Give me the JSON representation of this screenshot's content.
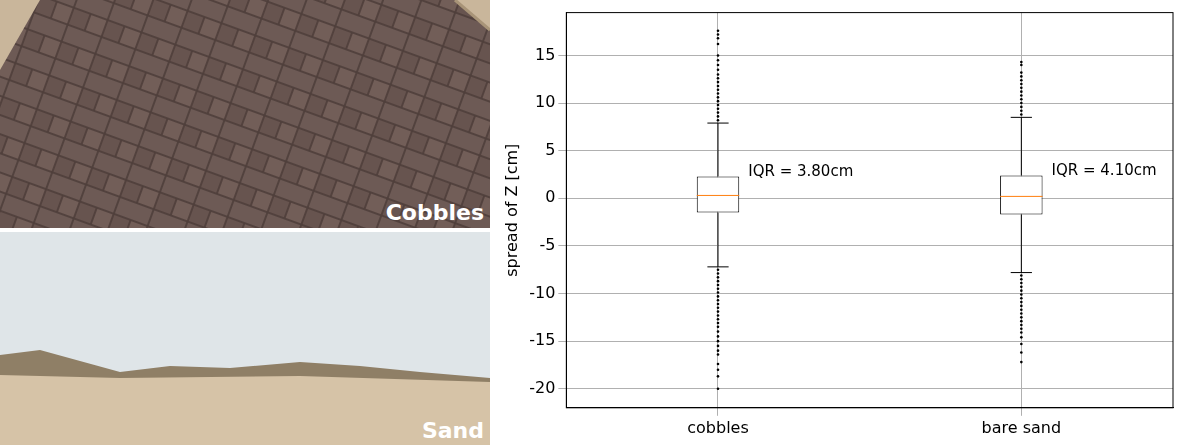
{
  "photos": [
    {
      "label": "Cobbles"
    },
    {
      "label": "Sand"
    }
  ],
  "chart_data": {
    "type": "box",
    "y_label": "spread of Z [cm]",
    "categories": [
      "cobbles",
      "bare sand"
    ],
    "boxes": [
      {
        "whislo": -7.2,
        "q1": -1.5,
        "median": 0.3,
        "q3": 2.3,
        "whishi": 7.9,
        "label": "IQR = 3.80cm",
        "outliers": [
          8.2,
          8.6,
          9.0,
          9.4,
          9.8,
          10.2,
          10.6,
          11.0,
          11.4,
          11.8,
          12.2,
          12.6,
          13.0,
          13.5,
          14.0,
          14.5,
          15.0,
          16.2,
          16.8,
          17.2,
          17.6,
          -7.5,
          -7.9,
          -8.3,
          -8.7,
          -9.1,
          -9.5,
          -9.9,
          -10.3,
          -10.7,
          -11.1,
          -11.5,
          -11.9,
          -12.3,
          -12.7,
          -13.1,
          -13.5,
          -14.0,
          -14.5,
          -15.0,
          -15.5,
          -16.0,
          -16.4,
          -17.4,
          -18.0,
          -18.7,
          -20.0
        ]
      },
      {
        "whislo": -7.8,
        "q1": -1.7,
        "median": 0.2,
        "q3": 2.4,
        "whishi": 8.5,
        "label": "IQR = 4.10cm",
        "outliers": [
          8.8,
          9.2,
          9.6,
          10.0,
          10.4,
          10.8,
          11.2,
          11.6,
          12.0,
          12.4,
          12.8,
          13.2,
          14.0,
          14.3,
          -8.1,
          -8.5,
          -8.9,
          -9.3,
          -9.7,
          -10.1,
          -10.5,
          -10.9,
          -11.3,
          -11.7,
          -12.1,
          -12.5,
          -12.9,
          -13.3,
          -13.7,
          -14.1,
          -14.6,
          -15.3,
          -16.2,
          -17.2
        ]
      }
    ],
    "color": "#000000",
    "ylim": [
      -22,
      19.5
    ],
    "yticks": [
      -20,
      -15,
      -10,
      -5,
      0,
      5,
      10,
      15
    ],
    "grid": true
  }
}
